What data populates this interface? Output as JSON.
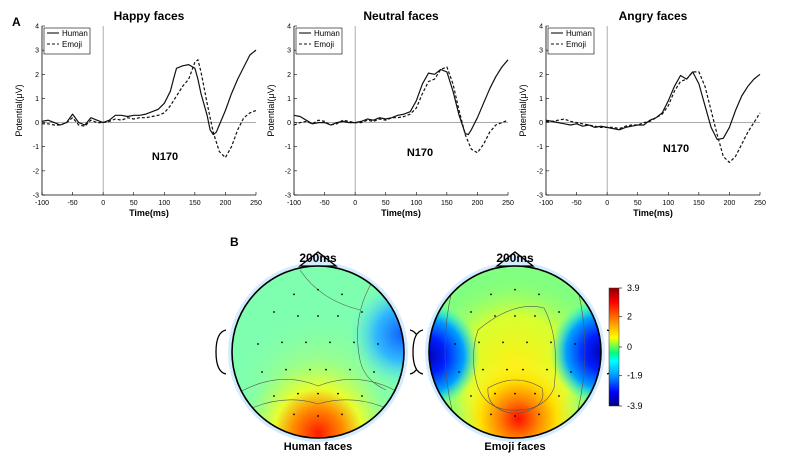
{
  "panel_a_label": "A",
  "panel_b_label": "B",
  "chart_data": [
    {
      "type": "line",
      "title": "Happy faces",
      "xlabel": "Time(ms)",
      "ylabel": "Potential(μV)",
      "xlim": [
        -100,
        250
      ],
      "ylim": [
        -3,
        4
      ],
      "xticks": [
        -100,
        -50,
        0,
        50,
        100,
        150,
        200,
        250
      ],
      "yticks": [
        -3,
        -2,
        -1,
        0,
        1,
        2,
        3,
        4
      ],
      "annotation": "N170",
      "legend": [
        "Human",
        "Emoji"
      ],
      "series": [
        {
          "name": "Human",
          "style": "solid",
          "x": [
            -100,
            -90,
            -80,
            -70,
            -60,
            -50,
            -40,
            -30,
            -20,
            -10,
            0,
            10,
            20,
            30,
            40,
            50,
            60,
            70,
            80,
            90,
            100,
            110,
            115,
            120,
            130,
            140,
            150,
            155,
            160,
            170,
            175,
            180,
            185,
            190,
            200,
            210,
            220,
            230,
            240,
            250
          ],
          "y": [
            0.05,
            0.1,
            0.0,
            -0.1,
            0.0,
            0.35,
            0.0,
            -0.1,
            0.2,
            0.1,
            0.0,
            0.1,
            0.3,
            0.3,
            0.25,
            0.3,
            0.3,
            0.35,
            0.45,
            0.55,
            0.8,
            1.3,
            1.8,
            2.25,
            2.35,
            2.4,
            2.25,
            1.8,
            1.2,
            0.3,
            -0.3,
            -0.5,
            -0.4,
            -0.1,
            0.5,
            1.2,
            1.8,
            2.3,
            2.8,
            3.0
          ]
        },
        {
          "name": "Emoji",
          "style": "dashed",
          "x": [
            -100,
            -90,
            -80,
            -70,
            -60,
            -50,
            -40,
            -30,
            -20,
            -10,
            0,
            10,
            20,
            30,
            40,
            50,
            60,
            70,
            80,
            90,
            100,
            110,
            120,
            130,
            140,
            150,
            155,
            160,
            170,
            180,
            190,
            200,
            210,
            220,
            230,
            240,
            250
          ],
          "y": [
            -0.05,
            -0.05,
            -0.1,
            -0.1,
            0.0,
            0.2,
            -0.1,
            -0.15,
            0.1,
            0.0,
            0.0,
            0.05,
            0.15,
            0.1,
            0.2,
            0.15,
            0.2,
            0.2,
            0.25,
            0.3,
            0.4,
            0.7,
            1.1,
            1.5,
            1.8,
            2.5,
            2.6,
            2.1,
            0.8,
            -0.4,
            -1.2,
            -1.45,
            -1.0,
            -0.3,
            0.2,
            0.4,
            0.5
          ]
        }
      ]
    },
    {
      "type": "line",
      "title": "Neutral faces",
      "xlabel": "Time(ms)",
      "ylabel": "Potential(μV)",
      "xlim": [
        -100,
        250
      ],
      "ylim": [
        -3,
        4
      ],
      "xticks": [
        -100,
        -50,
        0,
        50,
        100,
        150,
        200,
        250
      ],
      "yticks": [
        -3,
        -2,
        -1,
        0,
        1,
        2,
        3,
        4
      ],
      "annotation": "N170",
      "legend": [
        "Human",
        "Emoji"
      ],
      "series": [
        {
          "name": "Human",
          "style": "solid",
          "x": [
            -100,
            -90,
            -80,
            -70,
            -60,
            -50,
            -40,
            -30,
            -20,
            -10,
            0,
            10,
            20,
            30,
            40,
            50,
            60,
            70,
            80,
            90,
            100,
            110,
            120,
            130,
            140,
            150,
            160,
            170,
            180,
            185,
            190,
            200,
            210,
            220,
            230,
            240,
            250
          ],
          "y": [
            0.3,
            0.25,
            0.1,
            -0.05,
            0.0,
            0.0,
            -0.1,
            0.0,
            0.05,
            0.0,
            0.0,
            0.05,
            0.15,
            0.1,
            0.2,
            0.15,
            0.2,
            0.3,
            0.35,
            0.45,
            0.9,
            1.6,
            2.05,
            2.0,
            2.2,
            2.1,
            1.3,
            0.3,
            -0.45,
            -0.5,
            -0.3,
            0.2,
            0.8,
            1.4,
            1.9,
            2.3,
            2.6
          ]
        },
        {
          "name": "Emoji",
          "style": "dashed",
          "x": [
            -100,
            -90,
            -80,
            -70,
            -60,
            -50,
            -40,
            -30,
            -20,
            -10,
            0,
            10,
            20,
            30,
            40,
            50,
            60,
            70,
            80,
            90,
            100,
            110,
            120,
            130,
            140,
            150,
            160,
            170,
            180,
            190,
            200,
            210,
            220,
            230,
            240,
            250
          ],
          "y": [
            -0.1,
            0.0,
            0.05,
            -0.05,
            0.1,
            0.05,
            -0.1,
            -0.05,
            0.1,
            0.05,
            0.0,
            0.0,
            0.1,
            0.05,
            0.15,
            0.1,
            0.2,
            0.2,
            0.25,
            0.35,
            0.6,
            1.2,
            1.7,
            1.8,
            2.2,
            2.3,
            1.6,
            0.5,
            -0.5,
            -1.1,
            -1.25,
            -0.9,
            -0.4,
            -0.1,
            0.0,
            0.1
          ]
        }
      ]
    },
    {
      "type": "line",
      "title": "Angry faces",
      "xlabel": "Time(ms)",
      "ylabel": "Potential(μV)",
      "xlim": [
        -100,
        250
      ],
      "ylim": [
        -3,
        4
      ],
      "xticks": [
        -100,
        -50,
        0,
        50,
        100,
        150,
        200,
        250
      ],
      "yticks": [
        -3,
        -2,
        -1,
        0,
        1,
        2,
        3,
        4
      ],
      "annotation": "N170",
      "legend": [
        "Human",
        "Emoji"
      ],
      "series": [
        {
          "name": "Human",
          "style": "solid",
          "x": [
            -100,
            -90,
            -80,
            -70,
            -60,
            -50,
            -40,
            -30,
            -20,
            -10,
            0,
            10,
            20,
            30,
            40,
            50,
            60,
            70,
            80,
            90,
            100,
            110,
            120,
            130,
            140,
            150,
            160,
            170,
            180,
            190,
            200,
            210,
            220,
            230,
            240,
            250
          ],
          "y": [
            0.1,
            0.05,
            0.0,
            -0.05,
            -0.1,
            -0.05,
            -0.15,
            -0.1,
            -0.2,
            -0.15,
            -0.2,
            -0.25,
            -0.3,
            -0.2,
            -0.15,
            -0.1,
            -0.1,
            0.1,
            0.2,
            0.4,
            0.9,
            1.5,
            1.95,
            1.8,
            2.1,
            1.6,
            0.7,
            -0.2,
            -0.7,
            -0.65,
            -0.2,
            0.5,
            1.1,
            1.5,
            1.8,
            2.0
          ]
        },
        {
          "name": "Emoji",
          "style": "dashed",
          "x": [
            -100,
            -90,
            -80,
            -70,
            -60,
            -50,
            -40,
            -30,
            -20,
            -10,
            0,
            10,
            20,
            30,
            40,
            50,
            60,
            70,
            80,
            90,
            100,
            110,
            120,
            130,
            140,
            150,
            160,
            170,
            180,
            190,
            200,
            210,
            220,
            230,
            240,
            250
          ],
          "y": [
            0.05,
            0.05,
            0.1,
            0.15,
            0.05,
            0.0,
            -0.05,
            -0.1,
            -0.15,
            -0.2,
            -0.2,
            -0.2,
            -0.25,
            -0.15,
            -0.1,
            -0.1,
            0.0,
            0.05,
            0.2,
            0.35,
            0.7,
            1.3,
            1.7,
            1.8,
            2.1,
            2.1,
            1.5,
            0.5,
            -0.5,
            -1.4,
            -1.65,
            -1.4,
            -0.9,
            -0.4,
            0.0,
            0.4
          ]
        }
      ]
    },
    {
      "type": "heatmap",
      "subtype": "topographic-map",
      "maps": [
        {
          "time_label": "200ms",
          "caption": "Human faces"
        },
        {
          "time_label": "200ms",
          "caption": "Emoji faces"
        }
      ],
      "colorbar": {
        "ticks": [
          "3.9",
          "2",
          "0",
          "-1.9",
          "-3.9"
        ],
        "range": [
          -3.9,
          3.9
        ]
      }
    }
  ]
}
